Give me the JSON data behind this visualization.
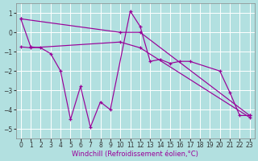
{
  "xlabel": "Windchill (Refroidissement éolien,°C)",
  "bg_color": "#b2e0e0",
  "grid_color": "#ffffff",
  "line_color": "#990099",
  "ylim": [
    -5.5,
    1.5
  ],
  "xlim": [
    -0.5,
    23.5
  ],
  "yticks": [
    1,
    0,
    -1,
    -2,
    -3,
    -4,
    -5
  ],
  "xticks": [
    0,
    1,
    2,
    3,
    4,
    5,
    6,
    7,
    8,
    9,
    10,
    11,
    12,
    13,
    14,
    15,
    16,
    17,
    18,
    19,
    20,
    21,
    22,
    23
  ],
  "tick_fontsize": 5.5,
  "label_fontsize": 6,
  "line1_x": [
    0,
    1,
    2,
    3,
    4,
    5,
    6,
    7,
    8,
    9,
    11,
    12,
    13,
    14,
    15,
    16,
    17,
    20,
    21,
    22,
    23
  ],
  "line1_y": [
    0.7,
    -0.75,
    -0.8,
    -1.1,
    -2.0,
    -4.5,
    -2.8,
    -4.9,
    -3.6,
    -4.0,
    1.1,
    0.3,
    -1.5,
    -1.4,
    -1.6,
    -1.5,
    -1.5,
    -2.0,
    -3.1,
    -4.3,
    -4.3
  ],
  "line2_x": [
    0,
    10,
    12,
    23
  ],
  "line2_y": [
    0.7,
    0.0,
    0.0,
    -4.3
  ],
  "line3_x": [
    0,
    1,
    10,
    12,
    23
  ],
  "line3_y": [
    -0.75,
    -0.8,
    -0.5,
    -0.8,
    -4.4
  ]
}
